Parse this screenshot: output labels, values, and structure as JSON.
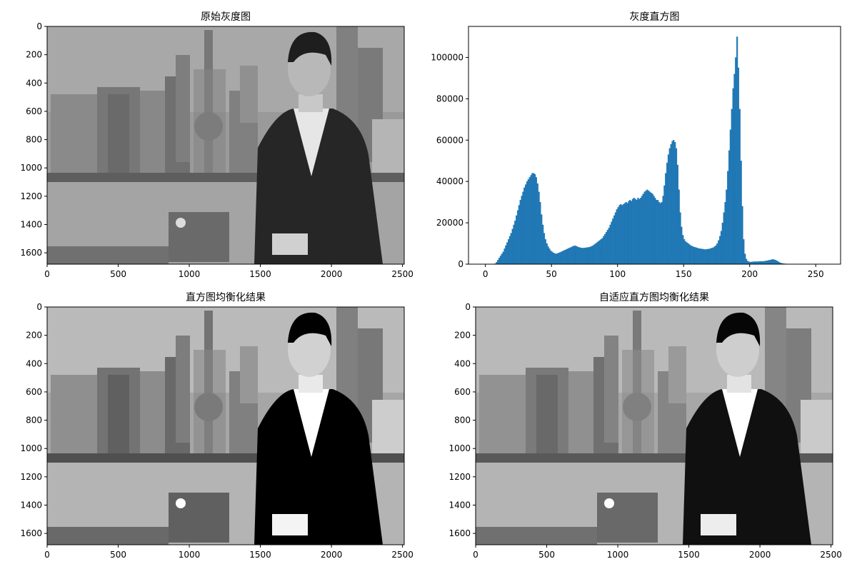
{
  "chart_data": [
    {
      "type": "image",
      "title": "原始灰度图",
      "xlim": [
        0,
        2512
      ],
      "ylim": [
        1680,
        0
      ],
      "xticks": [
        0,
        500,
        1000,
        1500,
        2000,
        2500
      ],
      "yticks": [
        0,
        200,
        400,
        600,
        800,
        1000,
        1200,
        1400,
        1600
      ]
    },
    {
      "type": "histogram",
      "title": "灰度直方图",
      "color": "#1f77b4",
      "xlim": [
        -12.8,
        268.8
      ],
      "ylim": [
        0,
        115000
      ],
      "xticks": [
        0,
        50,
        100,
        150,
        200,
        250
      ],
      "yticks": [
        0,
        20000,
        40000,
        60000,
        80000,
        100000
      ],
      "bins": [
        0,
        1,
        2,
        3,
        4,
        5,
        6,
        7,
        8,
        9,
        10,
        11,
        12,
        13,
        14,
        15,
        16,
        17,
        18,
        19,
        20,
        21,
        22,
        23,
        24,
        25,
        26,
        27,
        28,
        29,
        30,
        31,
        32,
        33,
        34,
        35,
        36,
        37,
        38,
        39,
        40,
        41,
        42,
        43,
        44,
        45,
        46,
        47,
        48,
        49,
        50,
        51,
        52,
        53,
        54,
        55,
        56,
        57,
        58,
        59,
        60,
        61,
        62,
        63,
        64,
        65,
        66,
        67,
        68,
        69,
        70,
        71,
        72,
        73,
        74,
        75,
        76,
        77,
        78,
        79,
        80,
        81,
        82,
        83,
        84,
        85,
        86,
        87,
        88,
        89,
        90,
        91,
        92,
        93,
        94,
        95,
        96,
        97,
        98,
        99,
        100,
        101,
        102,
        103,
        104,
        105,
        106,
        107,
        108,
        109,
        110,
        111,
        112,
        113,
        114,
        115,
        116,
        117,
        118,
        119,
        120,
        121,
        122,
        123,
        124,
        125,
        126,
        127,
        128,
        129,
        130,
        131,
        132,
        133,
        134,
        135,
        136,
        137,
        138,
        139,
        140,
        141,
        142,
        143,
        144,
        145,
        146,
        147,
        148,
        149,
        150,
        151,
        152,
        153,
        154,
        155,
        156,
        157,
        158,
        159,
        160,
        161,
        162,
        163,
        164,
        165,
        166,
        167,
        168,
        169,
        170,
        171,
        172,
        173,
        174,
        175,
        176,
        177,
        178,
        179,
        180,
        181,
        182,
        183,
        184,
        185,
        186,
        187,
        188,
        189,
        190,
        191,
        192,
        193,
        194,
        195,
        196,
        197,
        198,
        199,
        200,
        201,
        202,
        203,
        204,
        205,
        206,
        207,
        208,
        209,
        210,
        211,
        212,
        213,
        214,
        215,
        216,
        217,
        218,
        219,
        220,
        221,
        222,
        223,
        224,
        225,
        226,
        227,
        228,
        229,
        230,
        231,
        232,
        233,
        234,
        235,
        236,
        237,
        238,
        239,
        240,
        241,
        242,
        243,
        244,
        245,
        246,
        247,
        248,
        249,
        250,
        251,
        252,
        253,
        254,
        255,
        256
      ],
      "values": [
        0,
        0,
        0,
        0,
        0,
        0,
        0,
        300,
        1000,
        2000,
        3000,
        4000,
        5000,
        6000,
        7500,
        9000,
        10500,
        12000,
        13500,
        15000,
        17000,
        19000,
        21000,
        23500,
        26000,
        28500,
        31000,
        33000,
        35000,
        37000,
        38500,
        40000,
        41000,
        42000,
        43000,
        44000,
        44000,
        43500,
        42000,
        39000,
        35000,
        30000,
        24000,
        19000,
        15000,
        12000,
        10000,
        8500,
        7500,
        6500,
        6000,
        5500,
        5200,
        5000,
        5200,
        5400,
        5700,
        6000,
        6300,
        6600,
        6900,
        7200,
        7500,
        7800,
        8100,
        8400,
        8700,
        8900,
        8800,
        8500,
        8200,
        8000,
        7900,
        7800,
        7800,
        7900,
        8000,
        8100,
        8200,
        8400,
        8700,
        9000,
        9500,
        10000,
        10500,
        11000,
        11500,
        12000,
        12500,
        13500,
        14500,
        15500,
        16500,
        17500,
        19000,
        20500,
        22000,
        23500,
        25000,
        26500,
        27500,
        28500,
        29000,
        28500,
        29000,
        29500,
        30000,
        29500,
        30500,
        31000,
        30500,
        31500,
        32000,
        31500,
        31000,
        32000,
        31500,
        32000,
        33000,
        34000,
        35000,
        35500,
        36000,
        35500,
        35000,
        34500,
        34000,
        33000,
        32000,
        31000,
        31000,
        30000,
        29500,
        30000,
        33000,
        38000,
        44000,
        49000,
        53000,
        56000,
        58000,
        59500,
        60000,
        59000,
        56000,
        48000,
        36000,
        25000,
        18000,
        14000,
        12000,
        11000,
        10500,
        10000,
        9500,
        9000,
        8700,
        8400,
        8200,
        8000,
        7800,
        7600,
        7500,
        7400,
        7300,
        7200,
        7100,
        7200,
        7300,
        7400,
        7600,
        7800,
        8000,
        8500,
        9000,
        10000,
        11500,
        13500,
        16000,
        20000,
        25000,
        30000,
        36000,
        45000,
        55000,
        65000,
        75000,
        85000,
        92000,
        100000,
        110000,
        95000,
        75000,
        50000,
        28000,
        12000,
        5000,
        2500,
        1500,
        1200,
        1000,
        1100,
        1200,
        1200,
        1300,
        1200,
        1300,
        1300,
        1400,
        1300,
        1400,
        1500,
        1600,
        1700,
        1900,
        2000,
        2200,
        2300,
        2200,
        2000,
        1700,
        1300,
        900,
        600,
        400,
        300,
        200,
        150,
        100,
        0,
        0,
        0,
        0,
        0,
        0,
        0,
        0,
        0,
        0,
        0,
        0,
        0,
        0,
        0,
        0,
        0,
        0,
        0,
        0,
        0,
        0,
        0,
        0,
        0,
        0,
        0
      ]
    },
    {
      "type": "image",
      "title": "直方图均衡化结果",
      "xlim": [
        0,
        2512
      ],
      "ylim": [
        1680,
        0
      ],
      "xticks": [
        0,
        500,
        1000,
        1500,
        2000,
        2500
      ],
      "yticks": [
        0,
        200,
        400,
        600,
        800,
        1000,
        1200,
        1400,
        1600
      ]
    },
    {
      "type": "image",
      "title": "自适应直方图均衡化结果",
      "xlim": [
        0,
        2512
      ],
      "ylim": [
        1680,
        0
      ],
      "xticks": [
        0,
        500,
        1000,
        1500,
        2000,
        2500
      ],
      "yticks": [
        0,
        200,
        400,
        600,
        800,
        1000,
        1200,
        1400,
        1600
      ]
    }
  ]
}
